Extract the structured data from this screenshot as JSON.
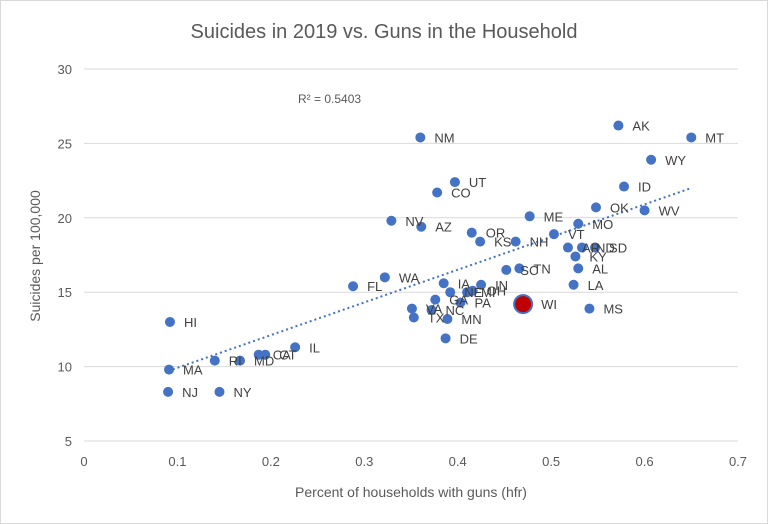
{
  "chart_data": {
    "type": "scatter",
    "title": "Suicides in 2019 vs. Guns in the Household",
    "xlabel": "Percent of households with guns (hfr)",
    "ylabel": "Suicides per 100,000",
    "xlim": [
      0,
      0.7
    ],
    "ylim": [
      5,
      30
    ],
    "xticks": [
      "0",
      "0.1",
      "0.2",
      "0.3",
      "0.4",
      "0.5",
      "0.6",
      "0.7"
    ],
    "yticks": [
      "5",
      "10",
      "15",
      "20",
      "25",
      "30"
    ],
    "grid": "horizontal",
    "legend": "none",
    "trendline": {
      "type": "linear",
      "style": "dotted",
      "r2_label": "R² = 0.5403",
      "x": [
        0.09,
        0.65
      ],
      "y": [
        9.7,
        22.0
      ]
    },
    "point_color": "#4472c4",
    "highlight_color": "#c00000",
    "points": [
      {
        "label": "AK",
        "x": 0.572,
        "y": 26.2
      },
      {
        "label": "MT",
        "x": 0.65,
        "y": 25.4
      },
      {
        "label": "NM",
        "x": 0.36,
        "y": 25.4
      },
      {
        "label": "WY",
        "x": 0.607,
        "y": 23.9
      },
      {
        "label": "UT",
        "x": 0.397,
        "y": 22.4
      },
      {
        "label": "CO",
        "x": 0.378,
        "y": 21.7
      },
      {
        "label": "ID",
        "x": 0.578,
        "y": 22.1
      },
      {
        "label": "OK",
        "x": 0.548,
        "y": 20.7
      },
      {
        "label": "WV",
        "x": 0.6,
        "y": 20.5
      },
      {
        "label": "ME",
        "x": 0.477,
        "y": 20.1
      },
      {
        "label": "NV",
        "x": 0.329,
        "y": 19.8
      },
      {
        "label": "AZ",
        "x": 0.361,
        "y": 19.4
      },
      {
        "label": "MO",
        "x": 0.529,
        "y": 19.6
      },
      {
        "label": "OR",
        "x": 0.415,
        "y": 19.0
      },
      {
        "label": "VT",
        "x": 0.503,
        "y": 18.9
      },
      {
        "label": "KS",
        "x": 0.424,
        "y": 18.4
      },
      {
        "label": "NH",
        "x": 0.462,
        "y": 18.4
      },
      {
        "label": "AR",
        "x": 0.518,
        "y": 18.0
      },
      {
        "label": "ND",
        "x": 0.533,
        "y": 18.0
      },
      {
        "label": "SD",
        "x": 0.547,
        "y": 18.0
      },
      {
        "label": "KY",
        "x": 0.526,
        "y": 17.4
      },
      {
        "label": "SC",
        "x": 0.452,
        "y": 16.5
      },
      {
        "label": "TN",
        "x": 0.466,
        "y": 16.6
      },
      {
        "label": "AL",
        "x": 0.529,
        "y": 16.6
      },
      {
        "label": "WA",
        "x": 0.322,
        "y": 16.0
      },
      {
        "label": "FL",
        "x": 0.288,
        "y": 15.4
      },
      {
        "label": "IA",
        "x": 0.385,
        "y": 15.6
      },
      {
        "label": "IN",
        "x": 0.425,
        "y": 15.5
      },
      {
        "label": "LA",
        "x": 0.524,
        "y": 15.5
      },
      {
        "label": "NE",
        "x": 0.392,
        "y": 15.0
      },
      {
        "label": "MI",
        "x": 0.41,
        "y": 15.0
      },
      {
        "label": "OH",
        "x": 0.416,
        "y": 15.1
      },
      {
        "label": "WI",
        "x": 0.47,
        "y": 14.2,
        "highlight": true
      },
      {
        "label": "GA",
        "x": 0.376,
        "y": 14.5
      },
      {
        "label": "PA",
        "x": 0.403,
        "y": 14.3
      },
      {
        "label": "VA",
        "x": 0.351,
        "y": 13.9
      },
      {
        "label": "NC",
        "x": 0.372,
        "y": 13.8
      },
      {
        "label": "TX",
        "x": 0.353,
        "y": 13.3
      },
      {
        "label": "MN",
        "x": 0.389,
        "y": 13.2
      },
      {
        "label": "MS",
        "x": 0.541,
        "y": 13.9
      },
      {
        "label": "HI",
        "x": 0.092,
        "y": 13.0
      },
      {
        "label": "DE",
        "x": 0.387,
        "y": 11.9
      },
      {
        "label": "IL",
        "x": 0.226,
        "y": 11.3
      },
      {
        "label": "CA",
        "x": 0.187,
        "y": 10.8
      },
      {
        "label": "CT",
        "x": 0.194,
        "y": 10.8
      },
      {
        "label": "RI",
        "x": 0.14,
        "y": 10.4
      },
      {
        "label": "MD",
        "x": 0.167,
        "y": 10.4
      },
      {
        "label": "MA",
        "x": 0.091,
        "y": 9.8
      },
      {
        "label": "NJ",
        "x": 0.09,
        "y": 8.3
      },
      {
        "label": "NY",
        "x": 0.145,
        "y": 8.3
      }
    ]
  }
}
